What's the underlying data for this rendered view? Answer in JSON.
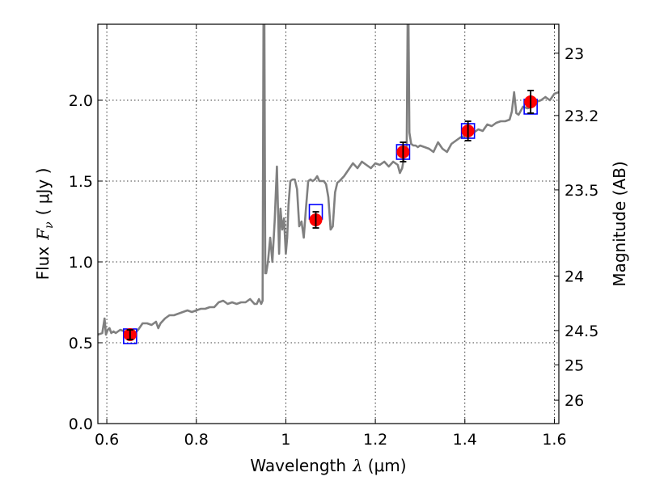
{
  "chart_data": {
    "type": "line",
    "title": "",
    "xlabel": "Wavelength",
    "xlabel_symbol": "λ",
    "xlabel_unit": "(μm)",
    "ylabel": "Flux",
    "ylabel_symbol": "F",
    "ylabel_subscript": "ν",
    "ylabel_unit": "( μJy )",
    "y2label": "Magnitude (AB)",
    "xlim": [
      0.58,
      1.61
    ],
    "ylim": [
      0.0,
      2.47
    ],
    "grid": true,
    "x_ticks": [
      0.6,
      0.8,
      1.0,
      1.2,
      1.4,
      1.6
    ],
    "x_tick_labels": [
      "0.6",
      "0.8",
      "1",
      "1.2",
      "1.4",
      "1.6"
    ],
    "y_ticks": [
      0.0,
      0.5,
      1.0,
      1.5,
      2.0
    ],
    "y_tick_labels": [
      "0.0",
      "0.5",
      "1.0",
      "1.5",
      "2.0"
    ],
    "y2_ticks": [
      23,
      23.2,
      23.5,
      24,
      24.5,
      25,
      26
    ],
    "y2_tick_labels": [
      "23",
      "23.2",
      "23.5",
      "24",
      "24.5",
      "25",
      "26"
    ],
    "colors": {
      "spectrum": "#808080",
      "observed": "#ff0000",
      "model_box": "#0000ff",
      "error_bar": "#000000"
    },
    "series": [
      {
        "kind": "spectrum",
        "x": [
          0.58,
          0.59,
          0.595,
          0.598,
          0.602,
          0.606,
          0.61,
          0.615,
          0.62,
          0.63,
          0.64,
          0.65,
          0.66,
          0.67,
          0.675,
          0.68,
          0.69,
          0.7,
          0.71,
          0.715,
          0.72,
          0.73,
          0.74,
          0.75,
          0.76,
          0.77,
          0.78,
          0.79,
          0.8,
          0.81,
          0.82,
          0.83,
          0.84,
          0.85,
          0.86,
          0.87,
          0.88,
          0.89,
          0.9,
          0.91,
          0.92,
          0.93,
          0.935,
          0.94,
          0.945,
          0.948,
          0.95,
          0.952,
          0.954,
          0.956,
          0.96,
          0.965,
          0.97,
          0.975,
          0.98,
          0.985,
          0.988,
          0.992,
          0.996,
          1.0,
          1.003,
          1.006,
          1.01,
          1.015,
          1.02,
          1.025,
          1.03,
          1.035,
          1.04,
          1.045,
          1.05,
          1.055,
          1.06,
          1.065,
          1.07,
          1.075,
          1.08,
          1.085,
          1.09,
          1.095,
          1.1,
          1.105,
          1.11,
          1.115,
          1.12,
          1.13,
          1.14,
          1.15,
          1.16,
          1.17,
          1.18,
          1.19,
          1.2,
          1.21,
          1.22,
          1.23,
          1.24,
          1.25,
          1.255,
          1.26,
          1.265,
          1.27,
          1.272,
          1.274,
          1.276,
          1.28,
          1.285,
          1.29,
          1.295,
          1.3,
          1.31,
          1.32,
          1.33,
          1.34,
          1.35,
          1.36,
          1.37,
          1.38,
          1.39,
          1.4,
          1.41,
          1.42,
          1.43,
          1.44,
          1.45,
          1.46,
          1.47,
          1.48,
          1.49,
          1.5,
          1.505,
          1.51,
          1.515,
          1.52,
          1.53,
          1.54,
          1.55,
          1.56,
          1.57,
          1.58,
          1.59,
          1.6,
          1.61
        ],
        "y": [
          0.55,
          0.56,
          0.65,
          0.55,
          0.58,
          0.59,
          0.56,
          0.57,
          0.56,
          0.58,
          0.57,
          0.56,
          0.55,
          0.58,
          0.6,
          0.62,
          0.62,
          0.61,
          0.63,
          0.59,
          0.62,
          0.65,
          0.67,
          0.67,
          0.68,
          0.69,
          0.7,
          0.69,
          0.7,
          0.71,
          0.71,
          0.72,
          0.72,
          0.75,
          0.76,
          0.74,
          0.75,
          0.74,
          0.75,
          0.75,
          0.77,
          0.74,
          0.74,
          0.77,
          0.74,
          0.76,
          2.47,
          2.47,
          0.93,
          0.93,
          1.0,
          1.15,
          1.0,
          1.25,
          1.59,
          1.05,
          1.33,
          1.2,
          1.27,
          1.05,
          1.15,
          1.35,
          1.5,
          1.51,
          1.51,
          1.45,
          1.22,
          1.25,
          1.15,
          1.33,
          1.5,
          1.51,
          1.5,
          1.51,
          1.53,
          1.5,
          1.5,
          1.5,
          1.48,
          1.4,
          1.2,
          1.22,
          1.43,
          1.49,
          1.5,
          1.53,
          1.57,
          1.61,
          1.58,
          1.62,
          1.6,
          1.58,
          1.61,
          1.6,
          1.62,
          1.59,
          1.62,
          1.6,
          1.55,
          1.58,
          1.66,
          1.66,
          2.47,
          2.47,
          1.8,
          1.73,
          1.72,
          1.72,
          1.71,
          1.72,
          1.71,
          1.7,
          1.68,
          1.74,
          1.7,
          1.68,
          1.73,
          1.75,
          1.77,
          1.78,
          1.79,
          1.8,
          1.82,
          1.81,
          1.85,
          1.84,
          1.86,
          1.87,
          1.87,
          1.88,
          1.93,
          2.05,
          1.92,
          1.91,
          1.96,
          1.95,
          1.96,
          1.99,
          2.0,
          2.02,
          2.0,
          2.04,
          2.05
        ]
      },
      {
        "kind": "model_points",
        "x": [
          0.652,
          1.067,
          1.262,
          1.407,
          1.547
        ],
        "y": [
          0.54,
          1.31,
          1.68,
          1.81,
          1.96
        ]
      },
      {
        "kind": "observed_points",
        "x": [
          0.652,
          1.067,
          1.262,
          1.407,
          1.547
        ],
        "y": [
          0.55,
          1.26,
          1.68,
          1.81,
          1.99
        ],
        "yerr": [
          0.03,
          0.05,
          0.06,
          0.06,
          0.07
        ]
      }
    ]
  }
}
